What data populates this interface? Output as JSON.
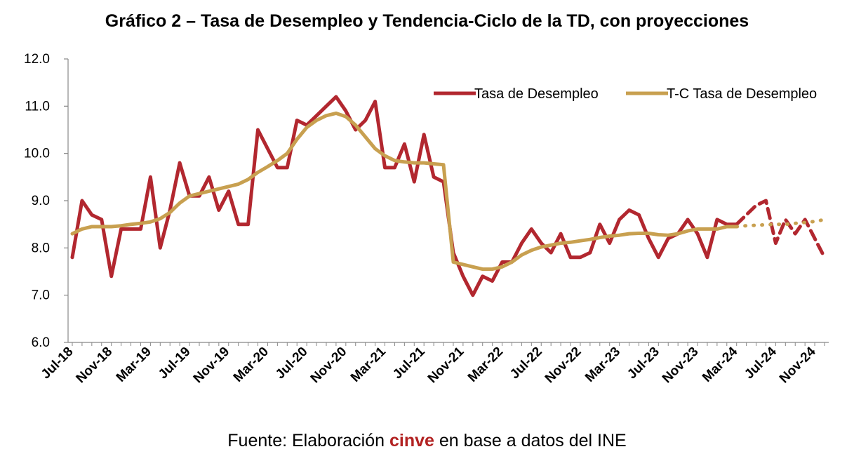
{
  "chart_data": {
    "type": "line",
    "title": "Gráfico 2 – Tasa de Desempleo y Tendencia-Ciclo de la TD, con proyecciones",
    "ylim": [
      6.0,
      12.0
    ],
    "yticks": [
      "6.0",
      "7.0",
      "8.0",
      "9.0",
      "10.0",
      "11.0",
      "12.0"
    ],
    "xtick_labels": [
      "Jul-18",
      "Nov-18",
      "Mar-19",
      "Jul-19",
      "Nov-19",
      "Mar-20",
      "Jul-20",
      "Nov-20",
      "Mar-21",
      "Jul-21",
      "Nov-21",
      "Mar-22",
      "Jul-22",
      "Nov-22",
      "Mar-23",
      "Jul-23",
      "Nov-23",
      "Mar-24",
      "Jul-24",
      "Nov-24"
    ],
    "x": [
      "Jul-18",
      "Aug-18",
      "Sep-18",
      "Oct-18",
      "Nov-18",
      "Dec-18",
      "Jan-19",
      "Feb-19",
      "Mar-19",
      "Apr-19",
      "May-19",
      "Jun-19",
      "Jul-19",
      "Aug-19",
      "Sep-19",
      "Oct-19",
      "Nov-19",
      "Dec-19",
      "Jan-20",
      "Feb-20",
      "Mar-20",
      "Apr-20",
      "May-20",
      "Jun-20",
      "Jul-20",
      "Aug-20",
      "Sep-20",
      "Oct-20",
      "Nov-20",
      "Dec-20",
      "Jan-21",
      "Feb-21",
      "Mar-21",
      "Apr-21",
      "May-21",
      "Jun-21",
      "Jul-21",
      "Aug-21",
      "Sep-21",
      "Oct-21",
      "Nov-21",
      "Dec-21",
      "Jan-22",
      "Feb-22",
      "Mar-22",
      "Apr-22",
      "May-22",
      "Jun-22",
      "Jul-22",
      "Aug-22",
      "Sep-22",
      "Oct-22",
      "Nov-22",
      "Dec-22",
      "Jan-23",
      "Feb-23",
      "Mar-23",
      "Apr-23",
      "May-23",
      "Jun-23",
      "Jul-23",
      "Aug-23",
      "Sep-23",
      "Oct-23",
      "Nov-23",
      "Dec-23",
      "Jan-24",
      "Feb-24",
      "Mar-24",
      "Apr-24",
      "May-24",
      "Jun-24",
      "Jul-24",
      "Aug-24",
      "Sep-24",
      "Oct-24",
      "Nov-24",
      "Dec-24"
    ],
    "series": [
      {
        "name": "Tasa de Desempleo",
        "color": "#b2272f",
        "style": "solid, dashed projection",
        "values": [
          7.8,
          9.0,
          8.7,
          8.6,
          7.4,
          8.4,
          8.4,
          8.4,
          9.5,
          8.0,
          8.8,
          9.8,
          9.1,
          9.1,
          9.5,
          8.8,
          9.2,
          8.5,
          8.5,
          10.5,
          10.1,
          9.7,
          9.7,
          10.7,
          10.6,
          10.8,
          11.0,
          11.2,
          10.9,
          10.5,
          10.7,
          11.1,
          9.7,
          9.7,
          10.2,
          9.4,
          10.4,
          9.5,
          9.4,
          7.9,
          7.4,
          7.0,
          7.4,
          7.3,
          7.7,
          7.7,
          8.1,
          8.4,
          8.1,
          7.9,
          8.3,
          7.8,
          7.8,
          7.9,
          8.5,
          8.1,
          8.6,
          8.8,
          8.7,
          8.2,
          7.8,
          8.2,
          8.3,
          8.6,
          8.3,
          7.8,
          8.6,
          8.5,
          8.5,
          8.7,
          8.9,
          9.0,
          8.1,
          8.6,
          8.3,
          8.6,
          8.2,
          7.8
        ]
      },
      {
        "name": "T-C Tasa de Desempleo",
        "color": "#c8a050",
        "style": "solid, dotted projection",
        "values": [
          8.3,
          8.4,
          8.45,
          8.45,
          8.45,
          8.47,
          8.5,
          8.52,
          8.55,
          8.62,
          8.75,
          8.95,
          9.1,
          9.15,
          9.2,
          9.25,
          9.3,
          9.35,
          9.45,
          9.6,
          9.72,
          9.85,
          10.0,
          10.3,
          10.55,
          10.7,
          10.8,
          10.85,
          10.78,
          10.6,
          10.35,
          10.1,
          9.95,
          9.85,
          9.82,
          9.8,
          9.8,
          9.78,
          9.76,
          7.7,
          7.65,
          7.6,
          7.55,
          7.55,
          7.6,
          7.7,
          7.85,
          7.95,
          8.02,
          8.06,
          8.1,
          8.12,
          8.15,
          8.18,
          8.22,
          8.25,
          8.27,
          8.3,
          8.31,
          8.31,
          8.28,
          8.27,
          8.3,
          8.36,
          8.4,
          8.4,
          8.4,
          8.45,
          8.45,
          8.47,
          8.48,
          8.49,
          8.5,
          8.5,
          8.52,
          8.54,
          8.56,
          8.6
        ]
      }
    ],
    "projection_start": "Mar-24",
    "legend": "top-right",
    "grid": false
  },
  "source": {
    "prefix": "Fuente: Elaboración ",
    "brand": "cinve",
    "suffix": " en base a datos del INE"
  }
}
